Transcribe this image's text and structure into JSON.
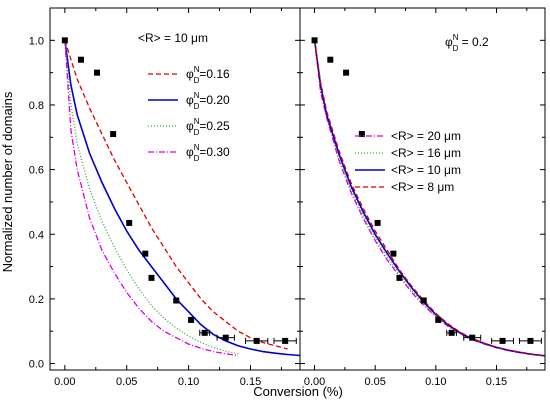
{
  "chart_data": [
    {
      "type": "line",
      "panel": "left",
      "annotation": "<R> = 10 μm",
      "xlabel": "Conversion (%)",
      "ylabel": "Normalized number of domains",
      "xlim": [
        -0.012,
        0.19
      ],
      "ylim": [
        -0.02,
        1.1
      ],
      "xticks": [
        "0.00",
        "0.05",
        "0.10",
        "0.15"
      ],
      "xtick_values": [
        0.0,
        0.05,
        0.1,
        0.15
      ],
      "yticks": [
        "0.0",
        "0.2",
        "0.4",
        "0.6",
        "0.8",
        "1.0"
      ],
      "ytick_values": [
        0.0,
        0.2,
        0.4,
        0.6,
        0.8,
        1.0
      ],
      "legend_position": "top-right",
      "series": [
        {
          "name": "φND=0.16",
          "phi_value": "=0.16",
          "color": "#dd0000",
          "dash": "dashed",
          "x": [
            0.0,
            0.005,
            0.01,
            0.02,
            0.03,
            0.04,
            0.05,
            0.06,
            0.07,
            0.08,
            0.09,
            0.1,
            0.11,
            0.12,
            0.13,
            0.14,
            0.15,
            0.16,
            0.17,
            0.18
          ],
          "y": [
            1.0,
            0.94,
            0.88,
            0.79,
            0.71,
            0.63,
            0.56,
            0.49,
            0.42,
            0.36,
            0.3,
            0.25,
            0.2,
            0.16,
            0.13,
            0.1,
            0.08,
            0.065,
            0.055,
            0.045
          ]
        },
        {
          "name": "φND=0.20",
          "phi_value": "=0.20",
          "color": "#0000cc",
          "dash": "solid",
          "x": [
            0.0,
            0.005,
            0.01,
            0.02,
            0.03,
            0.04,
            0.05,
            0.06,
            0.07,
            0.08,
            0.09,
            0.1,
            0.11,
            0.12,
            0.13,
            0.14,
            0.15,
            0.16,
            0.17,
            0.18,
            0.19
          ],
          "y": [
            1.0,
            0.86,
            0.77,
            0.65,
            0.56,
            0.48,
            0.41,
            0.35,
            0.3,
            0.25,
            0.2,
            0.16,
            0.12,
            0.09,
            0.07,
            0.055,
            0.045,
            0.037,
            0.032,
            0.028,
            0.025
          ]
        },
        {
          "name": "φND=0.25",
          "phi_value": "=0.25",
          "color": "#33aa33",
          "dash": "dotted",
          "x": [
            0.0,
            0.005,
            0.01,
            0.02,
            0.03,
            0.04,
            0.05,
            0.06,
            0.07,
            0.08,
            0.09,
            0.1,
            0.11,
            0.12,
            0.13,
            0.14
          ],
          "y": [
            1.0,
            0.8,
            0.68,
            0.54,
            0.44,
            0.36,
            0.29,
            0.23,
            0.18,
            0.14,
            0.11,
            0.085,
            0.065,
            0.05,
            0.038,
            0.03
          ]
        },
        {
          "name": "φND=0.30",
          "phi_value": "=0.30",
          "color": "#dd00dd",
          "dash": "dashdot",
          "x": [
            0.0,
            0.005,
            0.01,
            0.02,
            0.03,
            0.04,
            0.05,
            0.06,
            0.07,
            0.08,
            0.09,
            0.1,
            0.11,
            0.12,
            0.13,
            0.14
          ],
          "y": [
            1.0,
            0.72,
            0.6,
            0.45,
            0.35,
            0.28,
            0.22,
            0.17,
            0.13,
            0.1,
            0.08,
            0.06,
            0.047,
            0.037,
            0.03,
            0.025
          ]
        }
      ],
      "points": {
        "x": [
          0.0,
          0.013,
          0.026,
          0.039,
          0.052,
          0.065,
          0.07,
          0.09,
          0.102,
          0.113,
          0.13,
          0.155,
          0.178
        ],
        "y": [
          1.0,
          0.94,
          0.9,
          0.71,
          0.435,
          0.34,
          0.265,
          0.195,
          0.135,
          0.095,
          0.08,
          0.07,
          0.07
        ],
        "xerr": [
          0,
          0,
          0,
          0,
          0,
          0,
          0,
          0,
          0,
          0.004,
          0.007,
          0.009,
          0.009
        ]
      }
    },
    {
      "type": "line",
      "panel": "right",
      "annotation": "φND = 0.2",
      "annotation_value": " = 0.2",
      "xlim": [
        -0.012,
        0.19
      ],
      "ylim": [
        -0.02,
        1.1
      ],
      "xticks": [
        "0.00",
        "0.05",
        "0.10",
        "0.15"
      ],
      "xtick_values": [
        0.0,
        0.05,
        0.1,
        0.15
      ],
      "legend_position": "center-right",
      "series": [
        {
          "name": "<R> = 20 μm",
          "color": "#dd00dd",
          "dash": "dashdot",
          "x": [
            0.0,
            0.005,
            0.01,
            0.02,
            0.03,
            0.04,
            0.05,
            0.06,
            0.07,
            0.08,
            0.09,
            0.1,
            0.11,
            0.12,
            0.13,
            0.14,
            0.15,
            0.16,
            0.17,
            0.18,
            0.19
          ],
          "y": [
            1.0,
            0.84,
            0.76,
            0.63,
            0.53,
            0.45,
            0.38,
            0.32,
            0.27,
            0.22,
            0.18,
            0.145,
            0.115,
            0.092,
            0.074,
            0.06,
            0.049,
            0.04,
            0.033,
            0.028,
            0.024
          ]
        },
        {
          "name": "<R> = 16 μm",
          "color": "#33aa33",
          "dash": "dotted",
          "x": [
            0.0,
            0.005,
            0.01,
            0.02,
            0.03,
            0.04,
            0.05,
            0.06,
            0.07,
            0.08,
            0.09,
            0.1,
            0.11,
            0.12,
            0.13,
            0.14,
            0.15,
            0.16,
            0.17,
            0.18,
            0.19
          ],
          "y": [
            1.0,
            0.85,
            0.765,
            0.64,
            0.54,
            0.46,
            0.39,
            0.33,
            0.275,
            0.225,
            0.185,
            0.148,
            0.117,
            0.093,
            0.075,
            0.061,
            0.05,
            0.041,
            0.034,
            0.028,
            0.024
          ]
        },
        {
          "name": "<R> = 10 μm",
          "color": "#0000cc",
          "dash": "solid",
          "x": [
            0.0,
            0.005,
            0.01,
            0.02,
            0.03,
            0.04,
            0.05,
            0.06,
            0.07,
            0.08,
            0.09,
            0.1,
            0.11,
            0.12,
            0.13,
            0.14,
            0.15,
            0.16,
            0.17,
            0.18,
            0.19
          ],
          "y": [
            1.0,
            0.86,
            0.77,
            0.65,
            0.55,
            0.47,
            0.4,
            0.34,
            0.285,
            0.235,
            0.19,
            0.152,
            0.12,
            0.095,
            0.076,
            0.062,
            0.05,
            0.041,
            0.034,
            0.028,
            0.024
          ]
        },
        {
          "name": "<R> = 8 μm",
          "color": "#dd0000",
          "dash": "dashed",
          "x": [
            0.0,
            0.005,
            0.01,
            0.02,
            0.03,
            0.04,
            0.05,
            0.06,
            0.07,
            0.08,
            0.09,
            0.1,
            0.11,
            0.12,
            0.13,
            0.14,
            0.15,
            0.16,
            0.17,
            0.18,
            0.19
          ],
          "y": [
            1.0,
            0.87,
            0.78,
            0.66,
            0.56,
            0.48,
            0.41,
            0.35,
            0.29,
            0.24,
            0.195,
            0.155,
            0.123,
            0.097,
            0.078,
            0.063,
            0.051,
            0.042,
            0.035,
            0.029,
            0.025
          ]
        }
      ],
      "points": {
        "x": [
          0.0,
          0.013,
          0.026,
          0.039,
          0.052,
          0.065,
          0.07,
          0.09,
          0.102,
          0.113,
          0.13,
          0.155,
          0.178
        ],
        "y": [
          1.0,
          0.94,
          0.9,
          0.71,
          0.435,
          0.34,
          0.265,
          0.195,
          0.135,
          0.095,
          0.08,
          0.07,
          0.07
        ],
        "xerr": [
          0,
          0,
          0,
          0,
          0,
          0,
          0,
          0,
          0,
          0.004,
          0.007,
          0.009,
          0.009
        ]
      }
    }
  ]
}
